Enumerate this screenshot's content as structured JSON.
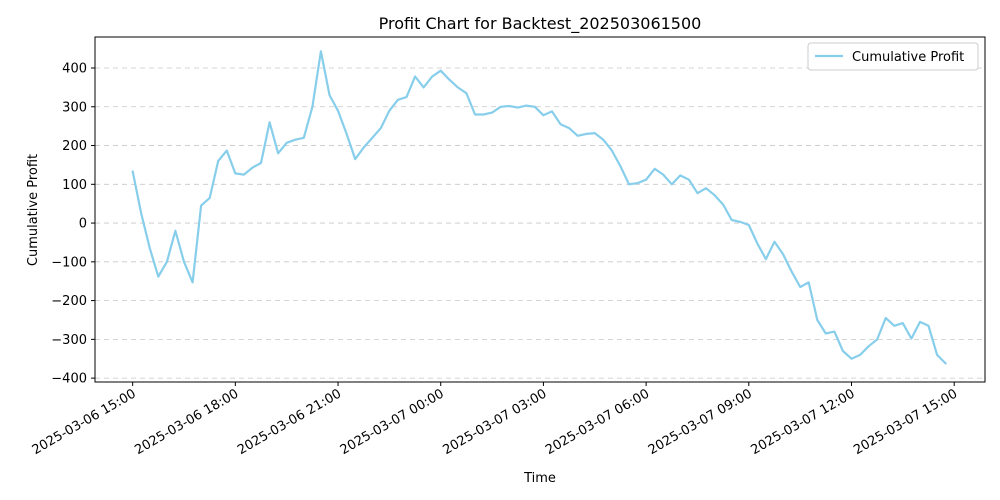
{
  "chart_data": {
    "type": "line",
    "title": "Profit Chart for Backtest_202503061500",
    "xlabel": "Time",
    "ylabel": "Cumulative Profit",
    "x_range_hours": [
      -1.1,
      24.9
    ],
    "ylim": [
      -410,
      480
    ],
    "y_ticks": [
      -400,
      -300,
      -200,
      -100,
      0,
      100,
      200,
      300,
      400
    ],
    "x_ticks": [
      {
        "hour": 0,
        "label": "2025-03-06 15:00"
      },
      {
        "hour": 3,
        "label": "2025-03-06 18:00"
      },
      {
        "hour": 6,
        "label": "2025-03-06 21:00"
      },
      {
        "hour": 9,
        "label": "2025-03-07 00:00"
      },
      {
        "hour": 12,
        "label": "2025-03-07 03:00"
      },
      {
        "hour": 15,
        "label": "2025-03-07 06:00"
      },
      {
        "hour": 18,
        "label": "2025-03-07 09:00"
      },
      {
        "hour": 21,
        "label": "2025-03-07 12:00"
      },
      {
        "hour": 24,
        "label": "2025-03-07 15:00"
      }
    ],
    "grid": "y-dashed",
    "legend_position": "top-right",
    "color": "#87CEEB",
    "series": [
      {
        "name": "Cumulative Profit",
        "x": [
          0.0,
          0.25,
          0.5,
          0.75,
          1.0,
          1.25,
          1.5,
          1.75,
          2.0,
          2.25,
          2.5,
          2.75,
          3.0,
          3.25,
          3.5,
          3.75,
          4.0,
          4.25,
          4.5,
          4.75,
          5.0,
          5.25,
          5.5,
          5.75,
          6.0,
          6.25,
          6.5,
          6.75,
          7.0,
          7.25,
          7.5,
          7.75,
          8.0,
          8.25,
          8.5,
          8.75,
          9.0,
          9.25,
          9.5,
          9.75,
          10.0,
          10.25,
          10.5,
          10.75,
          11.0,
          11.25,
          11.5,
          11.75,
          12.0,
          12.25,
          12.5,
          12.75,
          13.0,
          13.25,
          13.5,
          13.75,
          14.0,
          14.25,
          14.5,
          14.75,
          15.0,
          15.25,
          15.5,
          15.75,
          16.0,
          16.25,
          16.5,
          16.75,
          17.0,
          17.25,
          17.5,
          17.75,
          18.0,
          18.25,
          18.5,
          18.75,
          19.0,
          19.25,
          19.5,
          19.75,
          20.0,
          20.25,
          20.5,
          20.75,
          21.0,
          21.25,
          21.5,
          21.75,
          22.0,
          22.25,
          22.5,
          22.75,
          23.0,
          23.25,
          23.5,
          23.75
        ],
        "values": [
          133,
          25,
          -65,
          -138,
          -100,
          -20,
          -100,
          -153,
          45,
          65,
          160,
          187,
          128,
          125,
          143,
          155,
          260,
          180,
          207,
          215,
          220,
          300,
          443,
          330,
          290,
          230,
          165,
          195,
          220,
          245,
          290,
          318,
          325,
          378,
          350,
          378,
          393,
          370,
          350,
          335,
          280,
          280,
          285,
          300,
          302,
          298,
          303,
          300,
          278,
          288,
          255,
          245,
          225,
          230,
          232,
          215,
          187,
          147,
          100,
          103,
          112,
          140,
          125,
          100,
          123,
          112,
          77,
          90,
          72,
          48,
          8,
          3,
          -5,
          -53,
          -93,
          -48,
          -80,
          -125,
          -165,
          -153,
          -250,
          -285,
          -280,
          -330,
          -350,
          -340,
          -318,
          -300,
          -245,
          -265,
          -258,
          -298,
          -255,
          -265,
          -340,
          -362
        ]
      }
    ]
  }
}
